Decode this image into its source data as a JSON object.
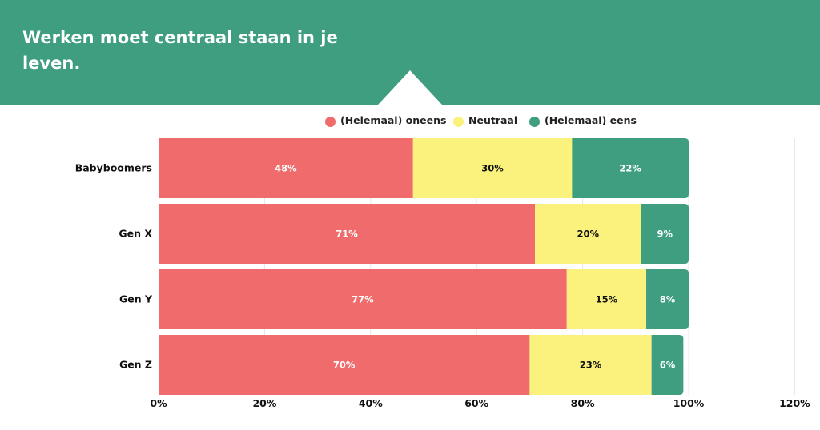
{
  "header": {
    "title": "Werken moet centraal staan in je leven."
  },
  "colors": {
    "header_bg": "#3e9e7f",
    "disagree": "#f06b6b",
    "neutral": "#fbf27d",
    "agree": "#3e9e7f",
    "gridline": "#e6e6e6"
  },
  "chart_data": {
    "type": "bar",
    "orientation": "horizontal",
    "stacked": true,
    "title": "Werken moet centraal staan in je leven.",
    "categories": [
      "Babyboomers",
      "Gen X",
      "Gen Y",
      "Gen Z"
    ],
    "series": [
      {
        "name": "(Helemaal) oneens",
        "color": "#f06b6b",
        "values": [
          48,
          71,
          77,
          70
        ],
        "labels": [
          "48%",
          "71%",
          "77%",
          "70%"
        ],
        "label_color": "#ffffff"
      },
      {
        "name": "Neutraal",
        "color": "#fbf27d",
        "values": [
          30,
          20,
          15,
          23
        ],
        "labels": [
          "30%",
          "20%",
          "15%",
          "23%"
        ],
        "label_color": "#111111"
      },
      {
        "name": "(Helemaal) eens",
        "color": "#3e9e7f",
        "values": [
          22,
          9,
          8,
          6
        ],
        "labels": [
          "22%",
          "9%",
          "8%",
          "6%"
        ],
        "label_color": "#ffffff"
      }
    ],
    "xlim": [
      0,
      120
    ],
    "xticks": [
      0,
      20,
      40,
      60,
      80,
      100,
      120
    ],
    "xtick_labels": [
      "0%",
      "20%",
      "40%",
      "60%",
      "80%",
      "100%",
      "120%"
    ],
    "legend_position": "top-center",
    "grid": true
  }
}
